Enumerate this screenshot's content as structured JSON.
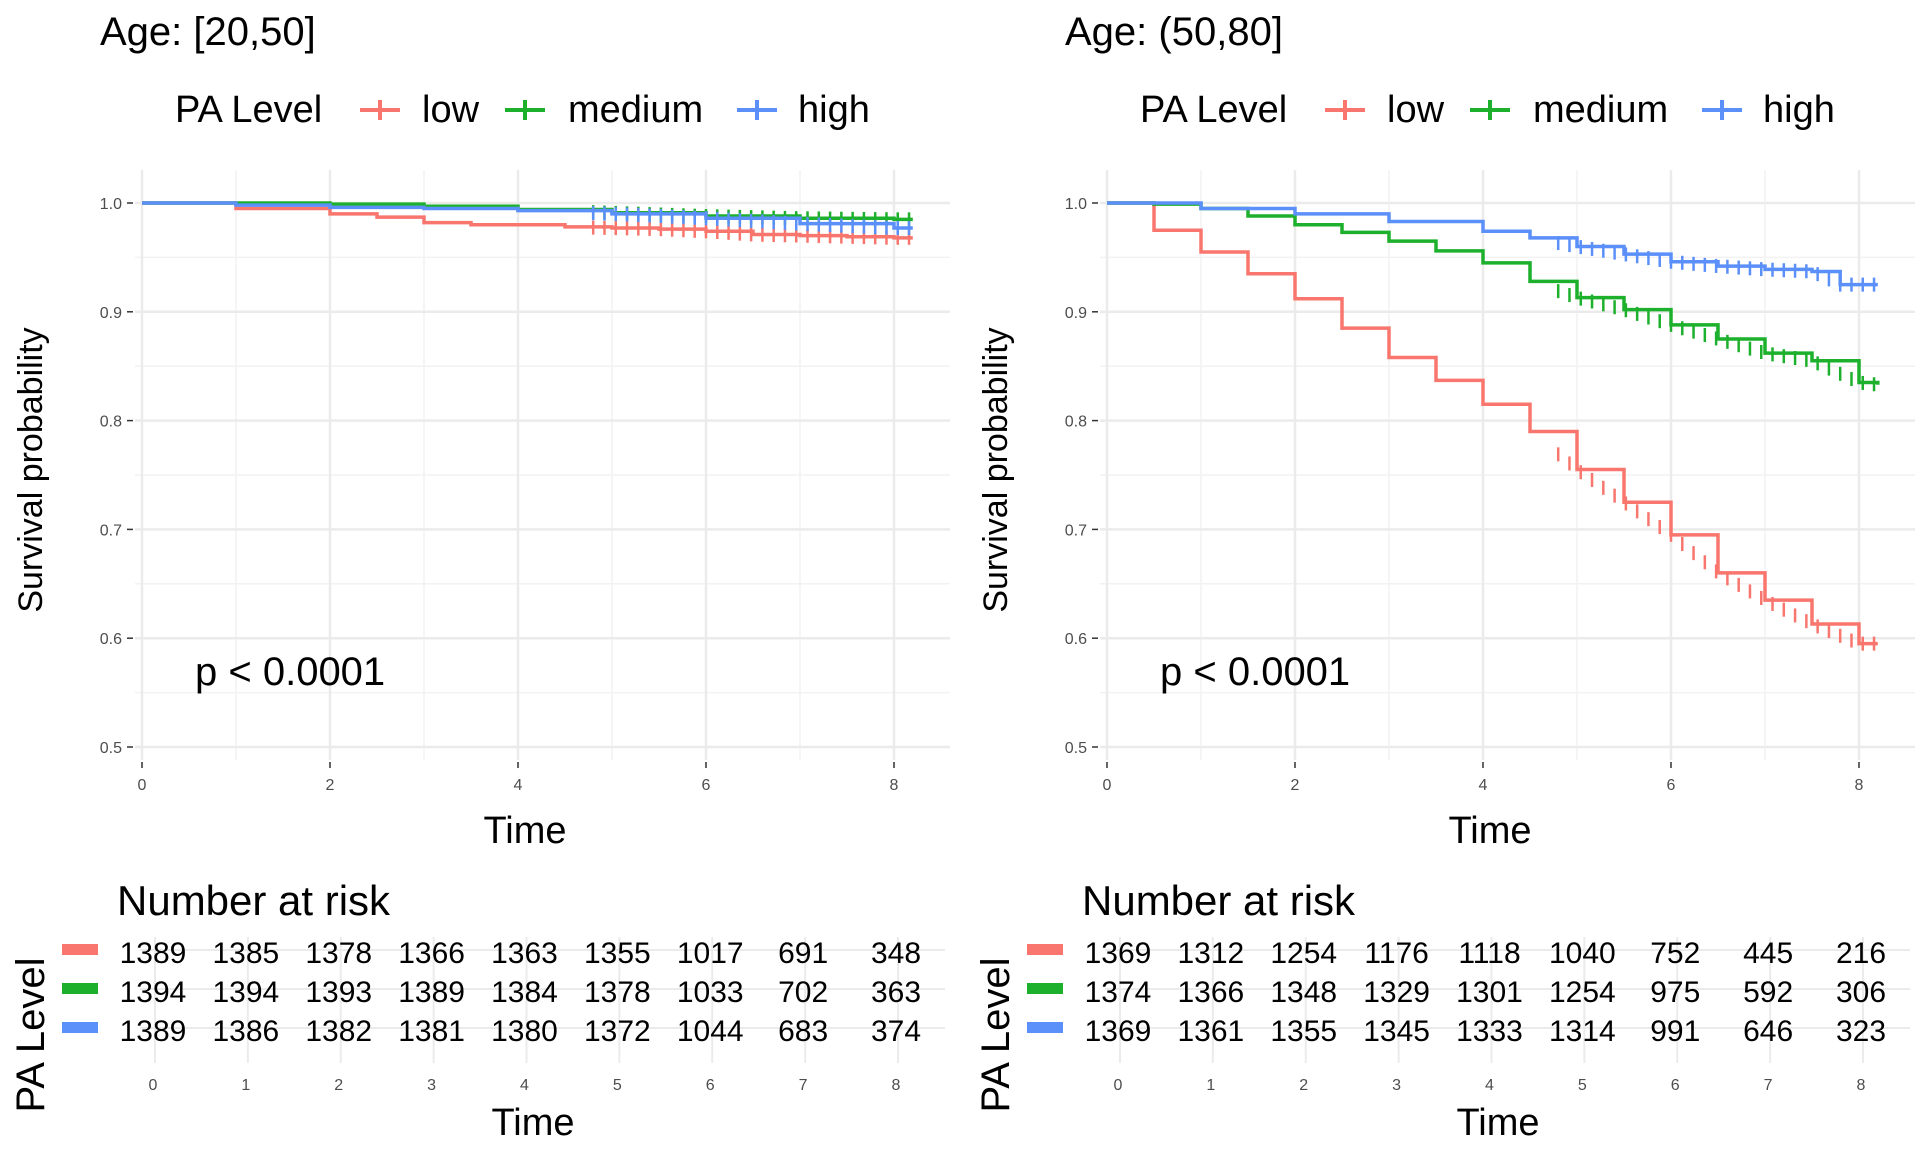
{
  "legend_title": "PA Level",
  "colors": {
    "low": "#F8766D",
    "medium": "#1DB02C",
    "high": "#5B8FF9",
    "grid": "#EBEBEB",
    "tick": "#4d4d4d"
  },
  "panels": [
    {
      "title": "Age: [20,50]",
      "pvalue": "p < 0.0001"
    },
    {
      "title": "Age: (50,80]",
      "pvalue": "p < 0.0001"
    }
  ],
  "chart_data": [
    {
      "type": "line",
      "title": "Age: [20,50]",
      "xlabel": "Time",
      "ylabel": "Survival probability",
      "xlim": [
        0,
        8.2
      ],
      "ylim": [
        0.5,
        1.0
      ],
      "xticks": [
        "0",
        "2",
        "4",
        "6",
        "8"
      ],
      "yticks": [
        "0.5",
        "0.6",
        "0.7",
        "0.8",
        "0.9",
        "1.0"
      ],
      "grid": true,
      "legend": {
        "title": "PA Level",
        "position": "top",
        "entries": [
          "low",
          "medium",
          "high"
        ]
      },
      "annotation": "p < 0.0001",
      "series": [
        {
          "name": "low",
          "color": "#F8766D",
          "x": [
            0,
            1,
            2,
            2.5,
            3,
            3.5,
            4,
            4.5,
            5,
            5.5,
            6,
            6.5,
            7,
            7.5,
            8,
            8.2
          ],
          "y": [
            1.0,
            0.995,
            0.99,
            0.987,
            0.982,
            0.98,
            0.98,
            0.978,
            0.977,
            0.976,
            0.974,
            0.971,
            0.97,
            0.969,
            0.968,
            0.968
          ],
          "censor_from": 4.8
        },
        {
          "name": "medium",
          "color": "#1DB02C",
          "x": [
            0,
            1,
            2,
            3,
            4,
            5,
            6,
            7,
            8,
            8.2
          ],
          "y": [
            1.0,
            1.0,
            0.999,
            0.997,
            0.994,
            0.991,
            0.988,
            0.986,
            0.985,
            0.985
          ],
          "censor_from": 4.8
        },
        {
          "name": "high",
          "color": "#5B8FF9",
          "x": [
            0,
            1,
            2,
            3,
            4,
            5,
            6,
            7,
            8,
            8.2
          ],
          "y": [
            1.0,
            0.998,
            0.996,
            0.995,
            0.993,
            0.99,
            0.986,
            0.981,
            0.977,
            0.977
          ],
          "censor_from": 4.8
        }
      ]
    },
    {
      "type": "line",
      "title": "Age: (50,80]",
      "xlabel": "Time",
      "ylabel": "Survival probability",
      "xlim": [
        0,
        8.2
      ],
      "ylim": [
        0.5,
        1.0
      ],
      "xticks": [
        "0",
        "2",
        "4",
        "6",
        "8"
      ],
      "yticks": [
        "0.5",
        "0.6",
        "0.7",
        "0.8",
        "0.9",
        "1.0"
      ],
      "grid": true,
      "legend": {
        "title": "PA Level",
        "position": "top",
        "entries": [
          "low",
          "medium",
          "high"
        ]
      },
      "annotation": "p < 0.0001",
      "series": [
        {
          "name": "low",
          "color": "#F8766D",
          "x": [
            0,
            0.5,
            1,
            1.5,
            2,
            2.5,
            3,
            3.5,
            4,
            4.5,
            5,
            5.5,
            6,
            6.5,
            7,
            7.5,
            8,
            8.2
          ],
          "y": [
            1.0,
            0.975,
            0.955,
            0.935,
            0.912,
            0.885,
            0.858,
            0.837,
            0.815,
            0.79,
            0.755,
            0.725,
            0.695,
            0.66,
            0.635,
            0.613,
            0.595,
            0.595
          ],
          "censor_from": 4.8
        },
        {
          "name": "medium",
          "color": "#1DB02C",
          "x": [
            0,
            0.5,
            1,
            1.5,
            2,
            2.5,
            3,
            3.5,
            4,
            4.5,
            5,
            5.5,
            6,
            6.5,
            7,
            7.5,
            8,
            8.2
          ],
          "y": [
            1.0,
            0.999,
            0.995,
            0.988,
            0.98,
            0.973,
            0.965,
            0.956,
            0.945,
            0.928,
            0.913,
            0.902,
            0.888,
            0.875,
            0.862,
            0.855,
            0.835,
            0.833
          ],
          "censor_from": 4.8
        },
        {
          "name": "high",
          "color": "#5B8FF9",
          "x": [
            0,
            1,
            2,
            3,
            4,
            4.5,
            5,
            5.5,
            6,
            6.5,
            7,
            7.5,
            7.8,
            8,
            8.2
          ],
          "y": [
            1.0,
            0.995,
            0.99,
            0.983,
            0.974,
            0.968,
            0.96,
            0.953,
            0.946,
            0.942,
            0.939,
            0.937,
            0.925,
            0.925,
            0.925
          ],
          "censor_from": 4.8
        }
      ]
    }
  ],
  "risk_tables": [
    {
      "title": "Number at risk",
      "ylabel": "PA Level",
      "xlabel": "Time",
      "times": [
        "0",
        "1",
        "2",
        "3",
        "4",
        "5",
        "6",
        "7",
        "8"
      ],
      "rows": [
        {
          "group": "low",
          "color": "#F8766D",
          "values": [
            "1389",
            "1385",
            "1378",
            "1366",
            "1363",
            "1355",
            "1017",
            "691",
            "348"
          ]
        },
        {
          "group": "medium",
          "color": "#1DB02C",
          "values": [
            "1394",
            "1394",
            "1393",
            "1389",
            "1384",
            "1378",
            "1033",
            "702",
            "363"
          ]
        },
        {
          "group": "high",
          "color": "#5B8FF9",
          "values": [
            "1389",
            "1386",
            "1382",
            "1381",
            "1380",
            "1372",
            "1044",
            "683",
            "374"
          ]
        }
      ]
    },
    {
      "title": "Number at risk",
      "ylabel": "PA Level",
      "xlabel": "Time",
      "times": [
        "0",
        "1",
        "2",
        "3",
        "4",
        "5",
        "6",
        "7",
        "8"
      ],
      "rows": [
        {
          "group": "low",
          "color": "#F8766D",
          "values": [
            "1369",
            "1312",
            "1254",
            "1176",
            "1118",
            "1040",
            "752",
            "445",
            "216"
          ]
        },
        {
          "group": "medium",
          "color": "#1DB02C",
          "values": [
            "1374",
            "1366",
            "1348",
            "1329",
            "1301",
            "1254",
            "975",
            "592",
            "306"
          ]
        },
        {
          "group": "high",
          "color": "#5B8FF9",
          "values": [
            "1369",
            "1361",
            "1355",
            "1345",
            "1333",
            "1314",
            "991",
            "646",
            "323"
          ]
        }
      ]
    }
  ]
}
